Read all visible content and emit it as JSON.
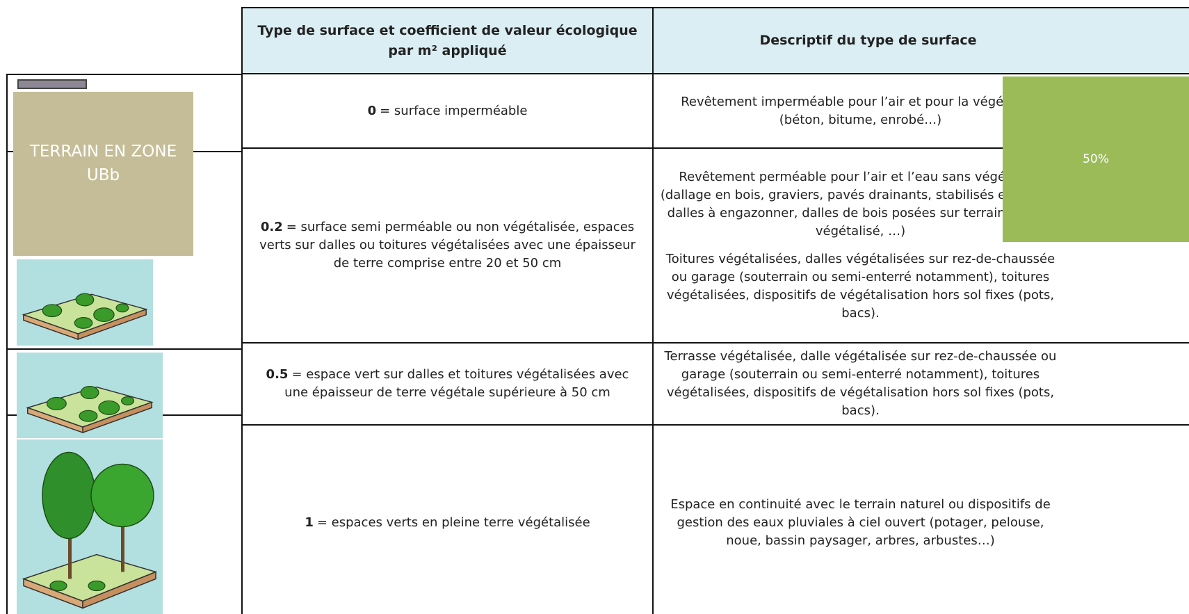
{
  "table": {
    "headers": [
      "Type de surface et coefficient de valeur écologique par m² appliqué",
      "Descriptif du type de surface"
    ],
    "rows": [
      {
        "coefficient": "0",
        "definition": "= surface imperméable",
        "description": [
          "Revêtement imperméable pour l’air et pour la végétation (béton, bitume, enrobé…)"
        ]
      },
      {
        "coefficient": "0.2",
        "definition": "= surface semi perméable ou non végétalisée, espaces verts sur dalles ou toitures végétalisées avec une épaisseur de terre comprise entre 20 et 50 cm",
        "description": [
          "Revêtement perméable pour l’air et l’eau sans végétation (dallage en bois, graviers, pavés drainants, stabilisés enherbés, dalles à engazonner, dalles de bois posées sur terrain naturel végétalisé, …)",
          "Toitures végétalisées, dalles végétalisées sur rez-de-chaussée ou garage (souterrain ou semi-enterré notamment), toitures végétalisées, dispositifs de végétalisation hors sol fixes (pots, bacs)."
        ]
      },
      {
        "coefficient": "0.5",
        "definition": "= espace vert sur dalles et toitures végétalisées avec une épaisseur de terre végétale supérieure à 50 cm",
        "description": [
          "Terrasse végétalisée, dalle végétalisée sur rez-de-chaussée ou garage (souterrain ou semi-enterré notamment), toitures végétalisées, dispositifs de végétalisation hors sol fixes (pots, bacs)."
        ]
      },
      {
        "coefficient": "1",
        "definition": "= espaces verts en pleine terre végétalisée",
        "description": [
          "Espace en continuité avec le terrain naturel ou dispositifs de gestion des eaux pluviales à ciel ouvert (potager, pelouse, noue, bassin paysager, arbres, arbustes…)"
        ]
      }
    ]
  },
  "overlays": {
    "zone_label": "TERRAIN EN ZONE UBb",
    "percentage": "50%"
  }
}
